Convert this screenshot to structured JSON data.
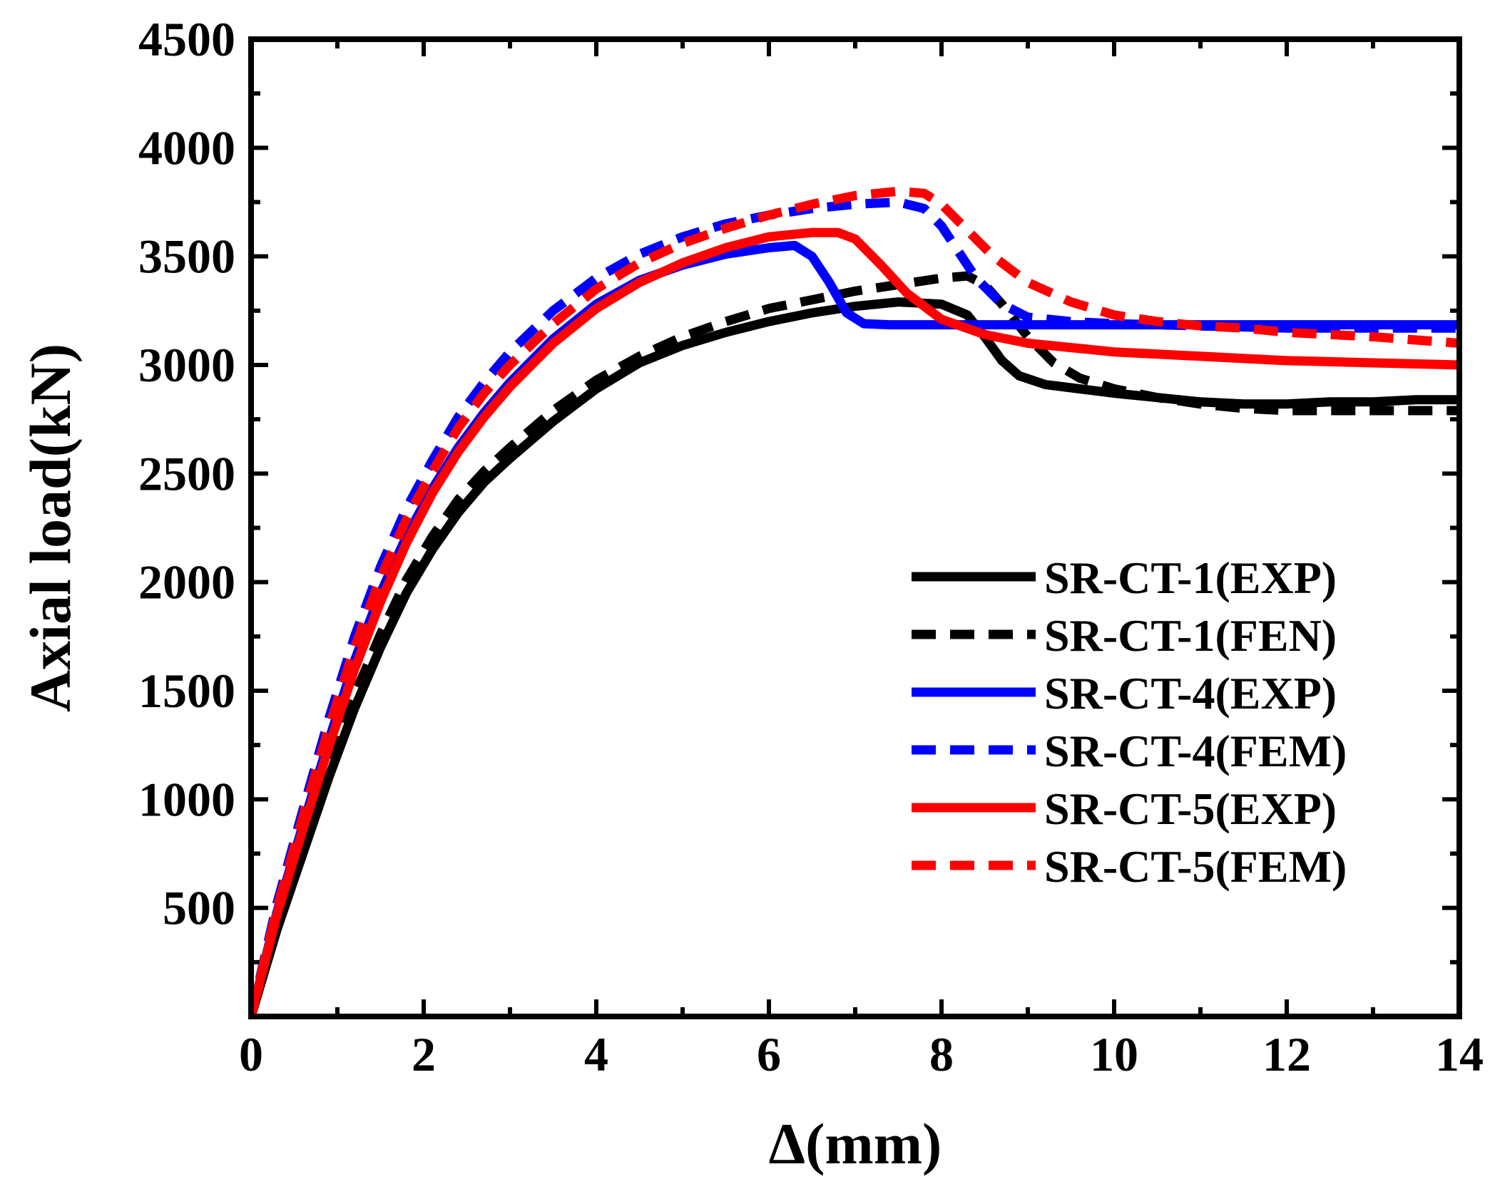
{
  "chart_data": {
    "type": "line",
    "title": "",
    "xlabel": "Δ(mm)",
    "ylabel": "Axial load(kN)",
    "xlim": [
      0,
      14
    ],
    "ylim": [
      0,
      4500
    ],
    "x_ticks": [
      0,
      2,
      4,
      6,
      8,
      10,
      12,
      14
    ],
    "y_ticks": [
      500,
      1000,
      1500,
      2000,
      2500,
      3000,
      3500,
      4000,
      4500
    ],
    "x_tick_labels": [
      "0",
      "2",
      "4",
      "6",
      "8",
      "10",
      "12",
      "14"
    ],
    "y_tick_labels": [
      "500",
      "1000",
      "1500",
      "2000",
      "2500",
      "3000",
      "3500",
      "4000",
      "4500"
    ],
    "grid": false,
    "legend_position": "lower-right",
    "series": [
      {
        "name": "SR-CT-1(EXP)",
        "color": "#000000",
        "dash": "solid",
        "x": [
          0,
          0.3,
          0.6,
          0.9,
          1.2,
          1.5,
          1.8,
          2.1,
          2.4,
          2.7,
          3.0,
          3.5,
          4.0,
          4.5,
          5.0,
          5.5,
          6.0,
          6.5,
          7.0,
          7.5,
          8.0,
          8.3,
          8.5,
          8.7,
          8.9,
          9.2,
          9.6,
          10.0,
          10.5,
          11.0,
          11.5,
          12.0,
          12.5,
          13.0,
          13.5,
          14.0
        ],
        "y": [
          0,
          400,
          750,
          1100,
          1420,
          1700,
          1950,
          2150,
          2320,
          2460,
          2570,
          2740,
          2890,
          3010,
          3090,
          3150,
          3200,
          3240,
          3270,
          3290,
          3280,
          3230,
          3130,
          3020,
          2950,
          2910,
          2890,
          2870,
          2850,
          2830,
          2820,
          2820,
          2830,
          2830,
          2840,
          2840
        ]
      },
      {
        "name": "SR-CT-1(FEN)",
        "color": "#000000",
        "dash": "dashed",
        "x": [
          0,
          0.3,
          0.6,
          0.9,
          1.2,
          1.5,
          1.8,
          2.1,
          2.4,
          2.7,
          3.0,
          3.5,
          4.0,
          4.5,
          5.0,
          5.5,
          6.0,
          6.5,
          7.0,
          7.5,
          8.0,
          8.3,
          8.5,
          8.7,
          9.0,
          9.3,
          9.6,
          10.0,
          10.5,
          11.0,
          11.5,
          12.0,
          12.5,
          13.0,
          13.5,
          14.0
        ],
        "y": [
          0,
          420,
          780,
          1150,
          1480,
          1760,
          2010,
          2210,
          2380,
          2510,
          2620,
          2790,
          2930,
          3040,
          3130,
          3200,
          3260,
          3300,
          3340,
          3370,
          3400,
          3410,
          3370,
          3280,
          3130,
          3010,
          2940,
          2890,
          2850,
          2820,
          2800,
          2790,
          2790,
          2790,
          2790,
          2790
        ]
      },
      {
        "name": "SR-CT-4(EXP)",
        "color": "#0000ff",
        "dash": "solid",
        "x": [
          0,
          0.3,
          0.6,
          0.9,
          1.2,
          1.5,
          1.8,
          2.1,
          2.4,
          2.7,
          3.0,
          3.5,
          4.0,
          4.5,
          5.0,
          5.5,
          6.0,
          6.3,
          6.5,
          6.7,
          6.9,
          7.1,
          7.4,
          8.0,
          9.0,
          10.0,
          11.0,
          12.0,
          13.0,
          14.0
        ],
        "y": [
          0,
          480,
          880,
          1270,
          1640,
          1950,
          2210,
          2430,
          2620,
          2780,
          2920,
          3120,
          3280,
          3390,
          3460,
          3510,
          3540,
          3550,
          3500,
          3380,
          3240,
          3190,
          3185,
          3185,
          3185,
          3185,
          3185,
          3185,
          3185,
          3185
        ]
      },
      {
        "name": "SR-CT-4(FEM)",
        "color": "#0000ff",
        "dash": "dashed",
        "x": [
          0,
          0.3,
          0.6,
          0.9,
          1.2,
          1.5,
          1.8,
          2.1,
          2.4,
          2.7,
          3.0,
          3.5,
          4.0,
          4.5,
          5.0,
          5.5,
          6.0,
          6.5,
          7.0,
          7.5,
          7.8,
          8.0,
          8.2,
          8.4,
          8.7,
          9.0,
          9.5,
          10.0,
          11.0,
          12.0,
          13.0,
          14.0
        ],
        "y": [
          0,
          520,
          950,
          1370,
          1750,
          2070,
          2340,
          2560,
          2760,
          2920,
          3060,
          3250,
          3400,
          3510,
          3590,
          3650,
          3690,
          3720,
          3740,
          3750,
          3720,
          3640,
          3520,
          3400,
          3280,
          3220,
          3200,
          3190,
          3180,
          3170,
          3170,
          3170
        ]
      },
      {
        "name": "SR-CT-5(EXP)",
        "color": "#ff0000",
        "dash": "solid",
        "x": [
          0,
          0.3,
          0.6,
          0.9,
          1.2,
          1.5,
          1.8,
          2.1,
          2.4,
          2.7,
          3.0,
          3.5,
          4.0,
          4.5,
          5.0,
          5.5,
          6.0,
          6.5,
          6.8,
          7.0,
          7.3,
          7.6,
          8.0,
          8.5,
          9.0,
          9.5,
          10.0,
          10.5,
          11.0,
          11.5,
          12.0,
          12.5,
          13.0,
          13.5,
          14.0
        ],
        "y": [
          0,
          470,
          860,
          1240,
          1600,
          1910,
          2180,
          2410,
          2600,
          2760,
          2900,
          3100,
          3260,
          3380,
          3470,
          3540,
          3590,
          3610,
          3610,
          3580,
          3460,
          3330,
          3210,
          3140,
          3100,
          3080,
          3060,
          3050,
          3040,
          3030,
          3020,
          3015,
          3010,
          3005,
          3000
        ]
      },
      {
        "name": "SR-CT-5(FEM)",
        "color": "#ff0000",
        "dash": "dashed",
        "x": [
          0,
          0.3,
          0.6,
          0.9,
          1.2,
          1.5,
          1.8,
          2.1,
          2.4,
          2.7,
          3.0,
          3.5,
          4.0,
          4.5,
          5.0,
          5.5,
          6.0,
          6.5,
          7.0,
          7.5,
          7.8,
          8.0,
          8.3,
          8.6,
          9.0,
          9.5,
          10.0,
          10.5,
          11.0,
          11.5,
          12.0,
          12.5,
          13.0,
          13.5,
          14.0
        ],
        "y": [
          0,
          500,
          920,
          1330,
          1700,
          2020,
          2290,
          2510,
          2710,
          2870,
          3000,
          3190,
          3350,
          3470,
          3560,
          3630,
          3690,
          3740,
          3780,
          3800,
          3790,
          3740,
          3620,
          3500,
          3380,
          3290,
          3230,
          3200,
          3180,
          3170,
          3150,
          3140,
          3130,
          3115,
          3100
        ]
      }
    ]
  }
}
